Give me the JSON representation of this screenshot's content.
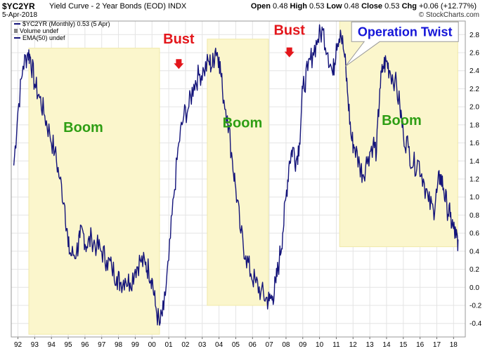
{
  "header": {
    "ticker": "$YC2YR",
    "description": "Yield Curve - 2 Year Bonds (EOD)",
    "exchange": "INDX",
    "date": "5-Apr-2018",
    "open_label": "Open",
    "open": "0.48",
    "high_label": "High",
    "high": "0.53",
    "low_label": "Low",
    "low": "0.48",
    "close_label": "Close",
    "close": "0.53",
    "chg_label": "Chg",
    "chg": "+0.06 (+12.77%)",
    "brand": "© StockCharts.com"
  },
  "legend": {
    "price": "$YC2YR (Monthly) 0.53 (5 Apr)",
    "volume": "Volume undef",
    "ema": "EMA(50) undef"
  },
  "colors": {
    "price_line": "#14147a",
    "boom_fill": "#fbf6cc",
    "boom_text": "#2e9e14",
    "bust_text": "#e3161b",
    "twist_text": "#1515d8",
    "grid": "#e4e4e4"
  },
  "chart_data": {
    "type": "line",
    "title": "",
    "xlabel": "",
    "ylabel": "",
    "xlim": [
      1991.6,
      2018.7
    ],
    "ylim": [
      -0.55,
      2.95
    ],
    "grid": true,
    "y_axis_side": "right",
    "y_ticks": [
      "-0.4",
      "-0.2",
      "0.0",
      "0.2",
      "0.4",
      "0.6",
      "0.8",
      "1.0",
      "1.2",
      "1.4",
      "1.6",
      "1.8",
      "2.0",
      "2.2",
      "2.4",
      "2.6",
      "2.8"
    ],
    "x_ticks": [
      {
        "year": 1992,
        "label": "92"
      },
      {
        "year": 1993,
        "label": "93"
      },
      {
        "year": 1994,
        "label": "94"
      },
      {
        "year": 1995,
        "label": "95"
      },
      {
        "year": 1996,
        "label": "96"
      },
      {
        "year": 1997,
        "label": "97"
      },
      {
        "year": 1998,
        "label": "98"
      },
      {
        "year": 1999,
        "label": "99"
      },
      {
        "year": 2000,
        "label": "00"
      },
      {
        "year": 2001,
        "label": "01"
      },
      {
        "year": 2002,
        "label": "02"
      },
      {
        "year": 2003,
        "label": "03"
      },
      {
        "year": 2004,
        "label": "04"
      },
      {
        "year": 2005,
        "label": "05"
      },
      {
        "year": 2006,
        "label": "06"
      },
      {
        "year": 2007,
        "label": "07"
      },
      {
        "year": 2008,
        "label": "08"
      },
      {
        "year": 2009,
        "label": "09"
      },
      {
        "year": 2010,
        "label": "10"
      },
      {
        "year": 2011,
        "label": "11"
      },
      {
        "year": 2012,
        "label": "12"
      },
      {
        "year": 2013,
        "label": "13"
      },
      {
        "year": 2014,
        "label": "14"
      },
      {
        "year": 2015,
        "label": "15"
      },
      {
        "year": 2016,
        "label": "16"
      },
      {
        "year": 2017,
        "label": "17"
      },
      {
        "year": 2018,
        "label": "18"
      }
    ],
    "series": [
      {
        "name": "$YC2YR",
        "points": [
          [
            1991.75,
            1.35
          ],
          [
            1992.0,
            1.95
          ],
          [
            1992.3,
            2.45
          ],
          [
            1992.6,
            2.6
          ],
          [
            1992.75,
            2.55
          ],
          [
            1993.0,
            2.25
          ],
          [
            1993.3,
            2.1
          ],
          [
            1993.6,
            1.9
          ],
          [
            1993.9,
            1.7
          ],
          [
            1994.2,
            1.5
          ],
          [
            1994.5,
            1.2
          ],
          [
            1994.8,
            0.9
          ],
          [
            1995.0,
            0.45
          ],
          [
            1995.2,
            0.35
          ],
          [
            1995.5,
            0.4
          ],
          [
            1995.7,
            0.55
          ],
          [
            1995.9,
            0.6
          ],
          [
            1996.1,
            0.45
          ],
          [
            1996.4,
            0.55
          ],
          [
            1996.7,
            0.45
          ],
          [
            1997.0,
            0.4
          ],
          [
            1997.3,
            0.3
          ],
          [
            1997.6,
            0.22
          ],
          [
            1997.9,
            0.12
          ],
          [
            1998.1,
            0.05
          ],
          [
            1998.4,
            0.1
          ],
          [
            1998.7,
            0.05
          ],
          [
            1999.0,
            0.2
          ],
          [
            1999.3,
            0.3
          ],
          [
            1999.6,
            0.25
          ],
          [
            1999.8,
            0.2
          ],
          [
            2000.0,
            0.1
          ],
          [
            2000.2,
            -0.2
          ],
          [
            2000.45,
            -0.42
          ],
          [
            2000.7,
            -0.25
          ],
          [
            2001.0,
            0.3
          ],
          [
            2001.3,
            1.0
          ],
          [
            2001.6,
            1.6
          ],
          [
            2001.9,
            1.9
          ],
          [
            2002.2,
            2.0
          ],
          [
            2002.5,
            2.25
          ],
          [
            2002.8,
            2.35
          ],
          [
            2003.1,
            2.4
          ],
          [
            2003.4,
            2.5
          ],
          [
            2003.6,
            2.45
          ],
          [
            2003.8,
            2.65
          ],
          [
            2004.0,
            2.55
          ],
          [
            2004.2,
            2.2
          ],
          [
            2004.5,
            1.9
          ],
          [
            2004.8,
            1.4
          ],
          [
            2005.0,
            1.1
          ],
          [
            2005.3,
            0.6
          ],
          [
            2005.6,
            0.35
          ],
          [
            2005.9,
            0.15
          ],
          [
            2006.2,
            0.05
          ],
          [
            2006.5,
            -0.05
          ],
          [
            2006.8,
            -0.12
          ],
          [
            2007.0,
            -0.15
          ],
          [
            2007.2,
            -0.1
          ],
          [
            2007.4,
            0.05
          ],
          [
            2007.6,
            0.3
          ],
          [
            2007.8,
            0.6
          ],
          [
            2008.0,
            1.0
          ],
          [
            2008.2,
            1.4
          ],
          [
            2008.4,
            1.55
          ],
          [
            2008.6,
            1.4
          ],
          [
            2008.8,
            1.6
          ],
          [
            2009.0,
            2.2
          ],
          [
            2009.3,
            2.4
          ],
          [
            2009.6,
            2.6
          ],
          [
            2009.9,
            2.75
          ],
          [
            2010.2,
            2.85
          ],
          [
            2010.5,
            2.6
          ],
          [
            2010.8,
            2.35
          ],
          [
            2011.0,
            2.7
          ],
          [
            2011.25,
            2.85
          ],
          [
            2011.5,
            2.55
          ],
          [
            2011.7,
            2.1
          ],
          [
            2011.9,
            1.65
          ],
          [
            2012.1,
            1.55
          ],
          [
            2012.4,
            1.35
          ],
          [
            2012.6,
            1.25
          ],
          [
            2012.9,
            1.45
          ],
          [
            2013.2,
            1.6
          ],
          [
            2013.4,
            1.5
          ],
          [
            2013.6,
            2.2
          ],
          [
            2013.8,
            2.45
          ],
          [
            2014.0,
            2.5
          ],
          [
            2014.2,
            2.4
          ],
          [
            2014.5,
            2.3
          ],
          [
            2014.8,
            2.0
          ],
          [
            2015.0,
            1.7
          ],
          [
            2015.3,
            1.55
          ],
          [
            2015.6,
            1.35
          ],
          [
            2015.9,
            1.4
          ],
          [
            2016.2,
            1.2
          ],
          [
            2016.5,
            0.95
          ],
          [
            2016.8,
            0.85
          ],
          [
            2017.0,
            1.05
          ],
          [
            2017.2,
            1.25
          ],
          [
            2017.4,
            1.1
          ],
          [
            2017.6,
            0.9
          ],
          [
            2017.8,
            0.78
          ],
          [
            2018.0,
            0.65
          ],
          [
            2018.15,
            0.55
          ],
          [
            2018.27,
            0.53
          ]
        ]
      }
    ],
    "shaded_regions": [
      {
        "label": "Boom",
        "x0": 1992.65,
        "x1": 2000.45,
        "y0": -0.52,
        "y1": 2.65
      },
      {
        "label": "Boom",
        "x0": 2003.3,
        "x1": 2006.95,
        "y0": -0.2,
        "y1": 2.75
      },
      {
        "label": "Boom",
        "x0": 2011.2,
        "x1": 2018.25,
        "y0": 0.45,
        "y1": 2.95
      }
    ],
    "annotations": [
      {
        "text": "Boom",
        "kind": "boom",
        "x": 1995.9,
        "y": 1.72
      },
      {
        "text": "Boom",
        "kind": "boom",
        "x": 2005.4,
        "y": 1.77
      },
      {
        "text": "Boom",
        "kind": "boom",
        "x": 2014.9,
        "y": 1.8
      },
      {
        "text": "Bust",
        "kind": "bust",
        "x": 2001.6,
        "y": 2.7,
        "arrow_y": 2.45
      },
      {
        "text": "Bust",
        "kind": "bust",
        "x": 2008.2,
        "y": 2.8,
        "arrow_y": 2.58
      },
      {
        "text": "Operation Twist",
        "kind": "twist",
        "x": 2015.1,
        "y": 2.8
      }
    ]
  }
}
